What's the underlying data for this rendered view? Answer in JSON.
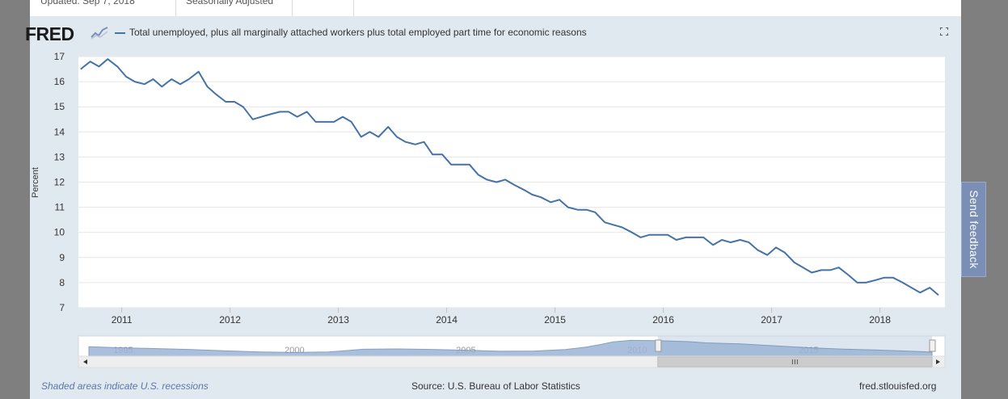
{
  "top_strip": {
    "updated": "Updated: Sep 7, 2018",
    "adjustment": "Seasonally Adjusted"
  },
  "header": {
    "logo": "FRED",
    "legend_label": "Total unemployed, plus all marginally attached workers plus total employed part time for economic reasons"
  },
  "footer": {
    "recession_note": "Shaded areas indicate U.S. recessions",
    "source": "Source: U.S. Bureau of Labor Statistics",
    "site": "fred.stlouisfed.org"
  },
  "feedback": {
    "label": "Send feedback"
  },
  "colors": {
    "line": "#4572a7",
    "navigator_fill": "#9cb5d6",
    "background": "#e1e9f0"
  },
  "navigator": {
    "labels": [
      "1995",
      "2000",
      "2005",
      "2010",
      "2015"
    ],
    "range_start": 1994.0,
    "range_end": 2018.6,
    "selected_start": 2010.6,
    "selected_end": 2018.6,
    "values": [
      [
        1994.0,
        11.8
      ],
      [
        1995.0,
        10.9
      ],
      [
        1996.0,
        10.3
      ],
      [
        1997.0,
        9.5
      ],
      [
        1998.0,
        8.4
      ],
      [
        1999.0,
        7.5
      ],
      [
        2000.0,
        7.1
      ],
      [
        2001.0,
        7.5
      ],
      [
        2001.5,
        8.6
      ],
      [
        2002.0,
        9.7
      ],
      [
        2003.0,
        10.0
      ],
      [
        2004.0,
        9.6
      ],
      [
        2005.0,
        8.9
      ],
      [
        2006.0,
        8.1
      ],
      [
        2007.0,
        8.3
      ],
      [
        2007.9,
        9.5
      ],
      [
        2008.5,
        11.5
      ],
      [
        2008.9,
        13.5
      ],
      [
        2009.3,
        15.8
      ],
      [
        2009.8,
        17.1
      ],
      [
        2010.6,
        16.8
      ],
      [
        2011.5,
        16.0
      ],
      [
        2012.0,
        15.0
      ],
      [
        2013.0,
        14.2
      ],
      [
        2014.0,
        12.6
      ],
      [
        2015.0,
        11.0
      ],
      [
        2016.0,
        9.8
      ],
      [
        2017.0,
        9.1
      ],
      [
        2018.0,
        8.1
      ],
      [
        2018.6,
        7.4
      ]
    ]
  },
  "chart_data": {
    "type": "line",
    "title": "",
    "xlabel": "",
    "ylabel": "Percent",
    "ylim": [
      7,
      17
    ],
    "yticks": [
      7,
      8,
      9,
      10,
      11,
      12,
      13,
      14,
      15,
      16,
      17
    ],
    "xlim": [
      2010.6,
      2018.6
    ],
    "xticks": [
      2011,
      2012,
      2013,
      2014,
      2015,
      2016,
      2017,
      2018
    ],
    "grid": true,
    "series": [
      {
        "name": "Total unemployed, plus all marginally attached workers plus total employed part time for economic reasons",
        "x": [
          2010.62,
          2010.71,
          2010.79,
          2010.87,
          2010.96,
          2011.04,
          2011.12,
          2011.21,
          2011.29,
          2011.37,
          2011.46,
          2011.54,
          2011.62,
          2011.71,
          2011.79,
          2011.87,
          2011.96,
          2012.04,
          2012.12,
          2012.21,
          2012.29,
          2012.37,
          2012.46,
          2012.54,
          2012.62,
          2012.71,
          2012.79,
          2012.87,
          2012.96,
          2013.04,
          2013.12,
          2013.21,
          2013.29,
          2013.37,
          2013.46,
          2013.54,
          2013.62,
          2013.71,
          2013.79,
          2013.87,
          2013.96,
          2014.04,
          2014.12,
          2014.21,
          2014.29,
          2014.37,
          2014.46,
          2014.54,
          2014.62,
          2014.71,
          2014.79,
          2014.87,
          2014.96,
          2015.04,
          2015.12,
          2015.21,
          2015.29,
          2015.37,
          2015.46,
          2015.54,
          2015.62,
          2015.71,
          2015.79,
          2015.87,
          2015.96,
          2016.04,
          2016.12,
          2016.21,
          2016.29,
          2016.37,
          2016.46,
          2016.54,
          2016.62,
          2016.71,
          2016.79,
          2016.87,
          2016.96,
          2017.04,
          2017.12,
          2017.21,
          2017.29,
          2017.37,
          2017.46,
          2017.54,
          2017.62,
          2017.71,
          2017.79,
          2017.87,
          2017.96,
          2018.04,
          2018.12,
          2018.21,
          2018.29,
          2018.37,
          2018.46,
          2018.54
        ],
        "y": [
          16.5,
          16.8,
          16.6,
          16.9,
          16.6,
          16.2,
          16.0,
          15.9,
          16.1,
          15.8,
          16.1,
          15.9,
          16.1,
          16.4,
          15.8,
          15.5,
          15.2,
          15.2,
          15.0,
          14.5,
          14.6,
          14.7,
          14.8,
          14.8,
          14.6,
          14.8,
          14.4,
          14.4,
          14.4,
          14.6,
          14.4,
          13.8,
          14.0,
          13.8,
          14.2,
          13.8,
          13.6,
          13.5,
          13.6,
          13.1,
          13.1,
          12.7,
          12.7,
          12.7,
          12.3,
          12.1,
          12.0,
          12.1,
          11.9,
          11.7,
          11.5,
          11.4,
          11.2,
          11.3,
          11.0,
          10.9,
          10.9,
          10.8,
          10.4,
          10.3,
          10.2,
          10.0,
          9.8,
          9.9,
          9.9,
          9.9,
          9.7,
          9.8,
          9.8,
          9.8,
          9.5,
          9.7,
          9.6,
          9.7,
          9.6,
          9.3,
          9.1,
          9.4,
          9.2,
          8.8,
          8.6,
          8.4,
          8.5,
          8.5,
          8.6,
          8.3,
          8.0,
          8.0,
          8.1,
          8.2,
          8.2,
          8.0,
          7.8,
          7.6,
          7.8,
          7.5
        ]
      }
    ]
  }
}
